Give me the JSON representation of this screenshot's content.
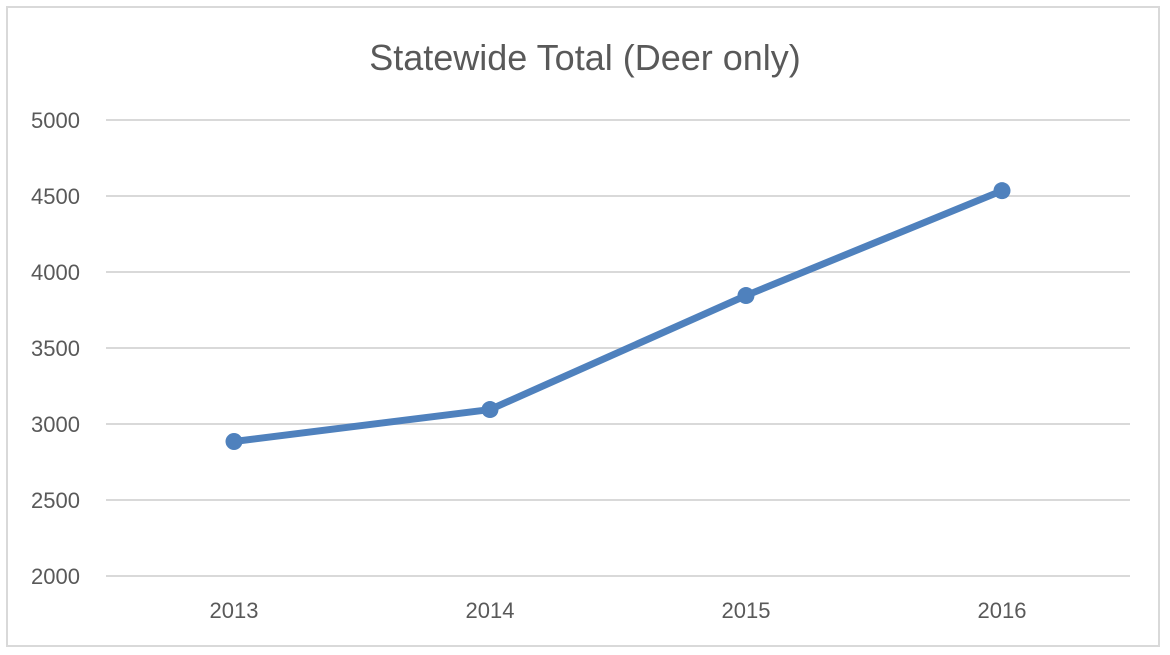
{
  "chart_data": {
    "type": "line",
    "title": "Statewide Total (Deer only)",
    "xlabel": "",
    "ylabel": "",
    "categories": [
      "2013",
      "2014",
      "2015",
      "2016"
    ],
    "series": [
      {
        "values": [
          2885,
          3095,
          3845,
          4535
        ]
      }
    ],
    "ylim": [
      2000,
      5000
    ],
    "yticks": [
      2000,
      2500,
      3000,
      3500,
      4000,
      4500,
      5000
    ],
    "grid": true,
    "legend": "none",
    "colors": {
      "series": "#4f81bd",
      "grid": "#d9d9d9",
      "text": "#595959",
      "border": "#d9d9d9"
    }
  }
}
